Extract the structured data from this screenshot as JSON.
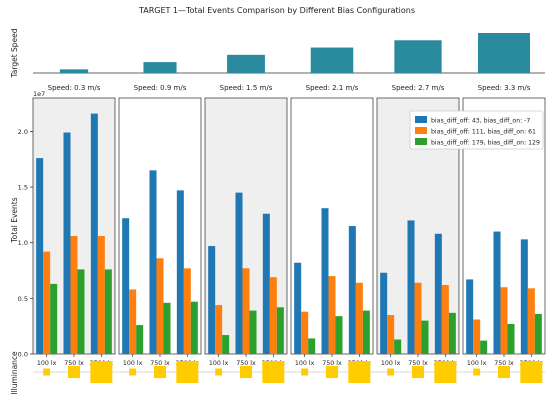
{
  "chart_data": {
    "type": "bar",
    "title": "TARGET 1—Total Events Comparison by Different Bias Configurations",
    "ylabel": "Total Events",
    "y_multiplier_label": "1e7",
    "ylim": [
      0,
      2.3
    ],
    "yticks": [
      0.0,
      0.5,
      1.0,
      1.5,
      2.0
    ],
    "ytick_labels": [
      "0.0",
      "0.5",
      "1.0",
      "1.5",
      "2.0"
    ],
    "top_strip_label": "Target Speed",
    "bottom_strip_label": "Illuminance",
    "categories": [
      "100 lx",
      "750 lx",
      "3700 lx"
    ],
    "speeds": [
      {
        "label": "Speed: 0.3 m/s",
        "value": 0.3
      },
      {
        "label": "Speed: 0.9 m/s",
        "value": 0.9
      },
      {
        "label": "Speed: 1.5 m/s",
        "value": 1.5
      },
      {
        "label": "Speed: 2.1 m/s",
        "value": 2.1
      },
      {
        "label": "Speed: 2.7 m/s",
        "value": 2.7
      },
      {
        "label": "Speed: 3.3 m/s",
        "value": 3.3
      }
    ],
    "illuminance_values": [
      100,
      750,
      3700
    ],
    "legend_position": "top-right",
    "series": [
      {
        "name": "bias_diff_off: 43, bias_diff_on: -7",
        "color": "#1f77b4",
        "values": [
          [
            1.76,
            1.99,
            2.16
          ],
          [
            1.22,
            1.65,
            1.47
          ],
          [
            0.97,
            1.45,
            1.26
          ],
          [
            0.82,
            1.31,
            1.15
          ],
          [
            0.73,
            1.2,
            1.08
          ],
          [
            0.67,
            1.1,
            1.03
          ]
        ]
      },
      {
        "name": "bias_diff_off: 111, bias_diff_on: 61",
        "color": "#ff7f0e",
        "values": [
          [
            0.92,
            1.06,
            1.06
          ],
          [
            0.58,
            0.86,
            0.77
          ],
          [
            0.44,
            0.77,
            0.69
          ],
          [
            0.38,
            0.7,
            0.64
          ],
          [
            0.35,
            0.64,
            0.62
          ],
          [
            0.31,
            0.6,
            0.59
          ]
        ]
      },
      {
        "name": "bias_diff_off: 179, bias_diff_on: 129",
        "color": "#2ca02c",
        "values": [
          [
            0.63,
            0.76,
            0.76
          ],
          [
            0.26,
            0.46,
            0.47
          ],
          [
            0.17,
            0.39,
            0.42
          ],
          [
            0.14,
            0.34,
            0.39
          ],
          [
            0.13,
            0.3,
            0.37
          ],
          [
            0.12,
            0.27,
            0.36
          ]
        ]
      }
    ],
    "speed_bar_color": "#2a8b9e",
    "illuminance_color": "#ffcc00",
    "panel_shading": "alternating light gray"
  }
}
